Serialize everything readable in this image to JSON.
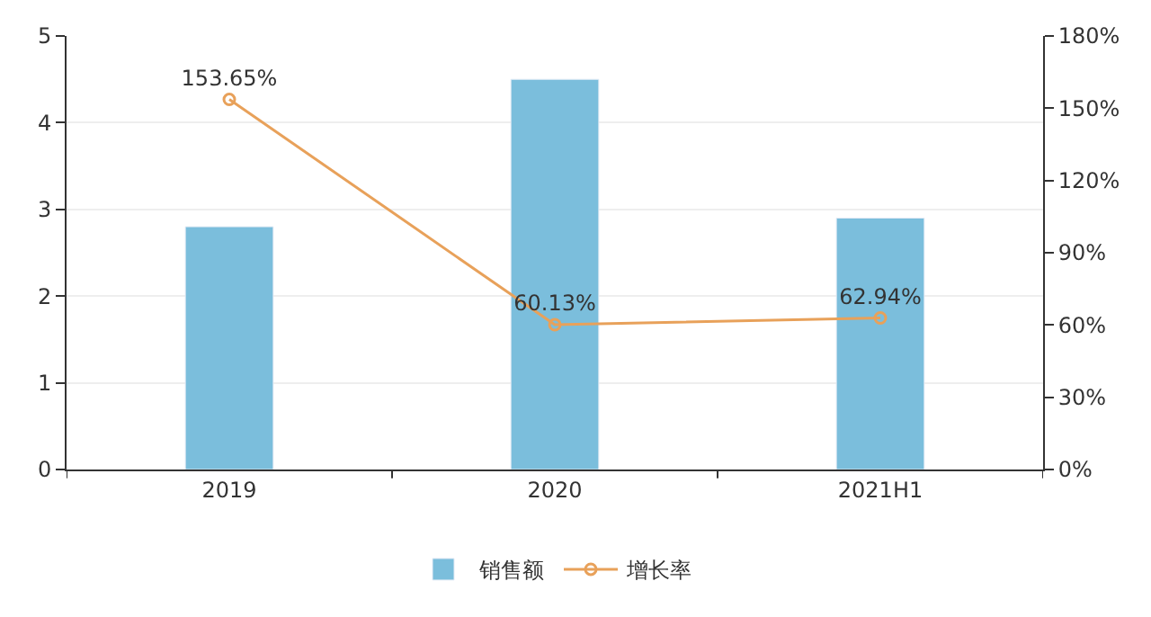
{
  "chart_data": {
    "type": "bar",
    "categories": [
      "2019",
      "2020",
      "2021H1"
    ],
    "series": [
      {
        "name": "销售额",
        "color": "#7bbedc",
        "values": [
          2.8,
          4.5,
          2.9
        ]
      },
      {
        "name": "增长率",
        "type": "line",
        "axis": "y2",
        "color": "#e8a15a",
        "values": [
          153.65,
          60.13,
          62.94
        ],
        "value_labels": [
          "153.65%",
          "60.13%",
          "62.94%"
        ]
      }
    ],
    "ylim": [
      0,
      5
    ],
    "yticks": [
      0,
      1,
      2,
      3,
      4,
      5
    ],
    "y2lim": [
      0,
      180
    ],
    "y2ticks": [
      {
        "value": 0,
        "label": "0%"
      },
      {
        "value": 30,
        "label": "30%"
      },
      {
        "value": 60,
        "label": "60%"
      },
      {
        "value": 90,
        "label": "90%"
      },
      {
        "value": 120,
        "label": "120%"
      },
      {
        "value": 150,
        "label": "150%"
      },
      {
        "value": 180,
        "label": "180%"
      }
    ],
    "grid": "y",
    "legend": "bottom",
    "marker": "circle",
    "line_style": "solid"
  }
}
